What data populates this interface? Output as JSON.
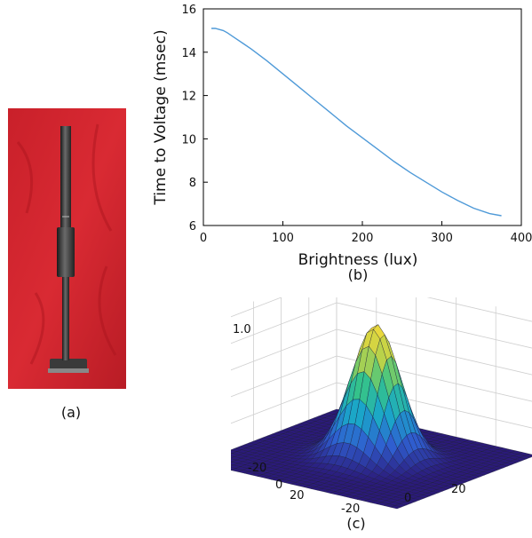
{
  "panels": {
    "a_caption": "(a)",
    "b_caption": "(b)",
    "c_caption": "(c)"
  },
  "chart_data": [
    {
      "type": "line",
      "xlabel": "Brightness (lux)",
      "ylabel": "Time to Voltage (msec)",
      "xlim": [
        0,
        400
      ],
      "ylim": [
        6,
        16
      ],
      "xticks": [
        0,
        100,
        200,
        300,
        400
      ],
      "yticks": [
        6,
        8,
        10,
        12,
        14,
        16
      ],
      "grid": false,
      "series": [
        {
          "color": "#4f9ad8",
          "x": [
            10,
            15,
            20,
            25,
            30,
            40,
            50,
            60,
            80,
            100,
            120,
            140,
            160,
            180,
            200,
            220,
            240,
            260,
            280,
            300,
            320,
            340,
            360,
            375
          ],
          "y": [
            15.1,
            15.1,
            15.05,
            15.0,
            14.9,
            14.65,
            14.4,
            14.15,
            13.6,
            13.0,
            12.4,
            11.8,
            11.2,
            10.6,
            10.05,
            9.5,
            8.95,
            8.45,
            8.0,
            7.55,
            7.15,
            6.8,
            6.55,
            6.45
          ]
        }
      ]
    },
    {
      "type": "surface3d",
      "description_ticks": true,
      "zticks": [
        "1.0"
      ],
      "xticks": [
        "-20",
        "0",
        "20"
      ],
      "yticks": [
        "-20",
        "0",
        "20"
      ],
      "peak": 1.0,
      "colormap": [
        "#2b1a7a",
        "#2f5fd0",
        "#1aa6c9",
        "#36c487",
        "#b9d24a",
        "#f2d93a"
      ]
    }
  ]
}
